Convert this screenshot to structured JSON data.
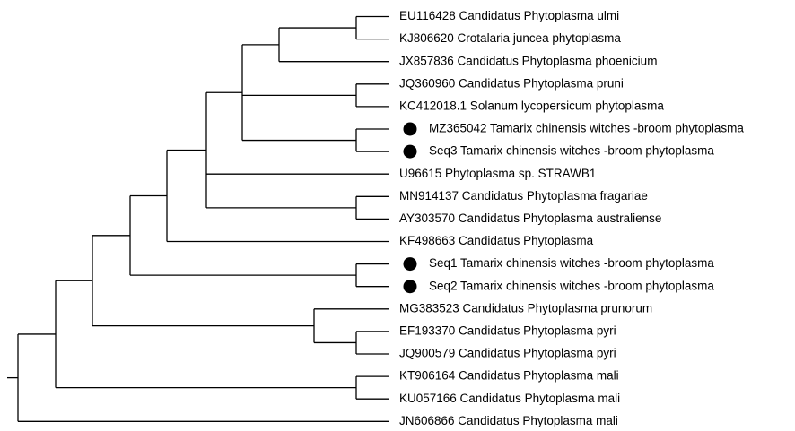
{
  "tree": {
    "leaves": [
      {
        "label": "EU116428 Candidatus Phytoplasma ulmi",
        "marked": false
      },
      {
        "label": "KJ806620 Crotalaria juncea phytoplasma",
        "marked": false
      },
      {
        "label": "JX857836 Candidatus Phytoplasma phoenicium",
        "marked": false
      },
      {
        "label": "JQ360960 Candidatus Phytoplasma pruni",
        "marked": false
      },
      {
        "label": "KC412018.1 Solanum lycopersicum phytoplasma",
        "marked": false
      },
      {
        "label": "MZ365042 Tamarix chinensis witches -broom phytoplasma",
        "marked": true
      },
      {
        "label": "Seq3 Tamarix chinensis witches -broom phytoplasma",
        "marked": true
      },
      {
        "label": "U96615 Phytoplasma sp. STRAWB1",
        "marked": false
      },
      {
        "label": "MN914137 Candidatus Phytoplasma fragariae",
        "marked": false
      },
      {
        "label": "AY303570 Candidatus Phytoplasma australiense",
        "marked": false
      },
      {
        "label": "KF498663 Candidatus Phytoplasma",
        "marked": false
      },
      {
        "label": "Seq1 Tamarix chinensis witches -broom phytoplasma",
        "marked": true
      },
      {
        "label": "Seq2 Tamarix chinensis witches -broom phytoplasma",
        "marked": true
      },
      {
        "label": "MG383523 Candidatus Phytoplasma prunorum",
        "marked": false
      },
      {
        "label": "EF193370 Candidatus Phytoplasma pyri",
        "marked": false
      },
      {
        "label": "JQ900579 Candidatus Phytoplasma pyri",
        "marked": false
      },
      {
        "label": "KT906164 Candidatus Phytoplasma mali",
        "marked": false
      },
      {
        "label": "KU057166 Candidatus Phytoplasma mali",
        "marked": false
      },
      {
        "label": "JN606866 Candidatus Phytoplasma mali",
        "marked": false
      }
    ],
    "colors": {
      "line": "#000000",
      "marker": "#000000",
      "background": "#ffffff"
    }
  }
}
